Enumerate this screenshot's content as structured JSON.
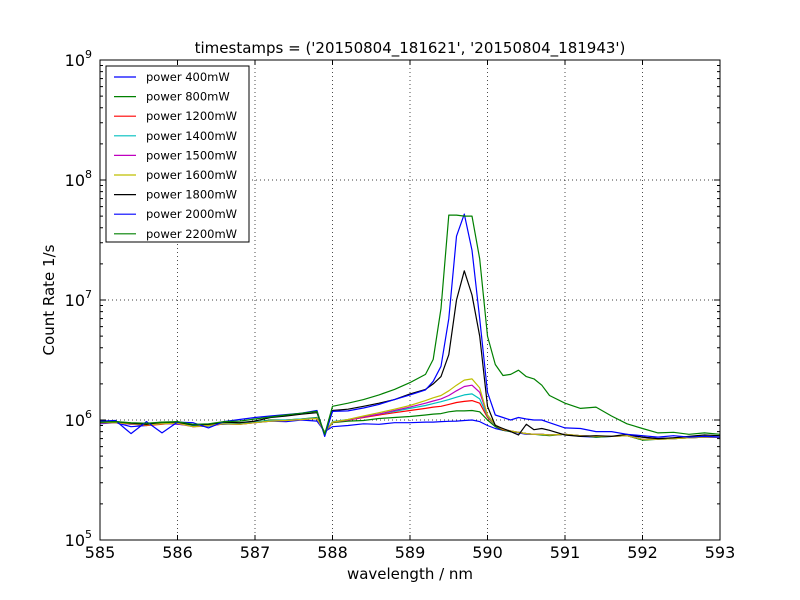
{
  "chart_data": {
    "type": "line",
    "title": "timestamps = ('20150804_181621', '20150804_181943')",
    "xlabel": "wavelength / nm",
    "ylabel": "Count Rate 1/s",
    "xlim": [
      585,
      593
    ],
    "ylim": [
      100000,
      1000000000
    ],
    "yscale": "log",
    "grid": true,
    "legend_position": "top-left",
    "x_ticks": [
      "585",
      "586",
      "587",
      "588",
      "589",
      "590",
      "591",
      "592",
      "593"
    ],
    "y_ticks": [
      {
        "base": "10",
        "exp": "5"
      },
      {
        "base": "10",
        "exp": "6"
      },
      {
        "base": "10",
        "exp": "7"
      },
      {
        "base": "10",
        "exp": "8"
      },
      {
        "base": "10",
        "exp": "9"
      }
    ],
    "x": [
      585.0,
      585.2,
      585.4,
      585.6,
      585.8,
      586.0,
      586.2,
      586.4,
      586.6,
      586.8,
      587.0,
      587.2,
      587.4,
      587.6,
      587.8,
      587.9,
      588.0,
      588.2,
      588.4,
      588.6,
      588.8,
      589.0,
      589.2,
      589.3,
      589.4,
      589.5,
      589.6,
      589.7,
      589.8,
      589.9,
      590.0,
      590.1,
      590.2,
      590.3,
      590.4,
      590.5,
      590.6,
      590.7,
      590.8,
      591.0,
      591.2,
      591.4,
      591.6,
      591.8,
      592.0,
      592.2,
      592.4,
      592.6,
      592.8,
      593.0
    ],
    "series": [
      {
        "name": "power 400mW",
        "color": "#0000ff",
        "values": [
          930000,
          950000,
          880000,
          900000,
          940000,
          920000,
          900000,
          910000,
          920000,
          930000,
          950000,
          980000,
          970000,
          1000000,
          980000,
          800000,
          880000,
          900000,
          930000,
          920000,
          950000,
          950000,
          960000,
          960000,
          970000,
          975000,
          980000,
          990000,
          1000000,
          970000,
          900000,
          850000,
          820000,
          800000,
          780000,
          760000,
          760000,
          760000,
          750000,
          760000,
          730000,
          720000,
          730000,
          740000,
          720000,
          700000,
          710000,
          720000,
          730000,
          720000
        ]
      },
      {
        "name": "power 800mW",
        "color": "#008000",
        "values": [
          970000,
          960000,
          940000,
          920000,
          950000,
          960000,
          900000,
          900000,
          960000,
          940000,
          960000,
          1000000,
          1000000,
          1020000,
          1050000,
          780000,
          950000,
          980000,
          990000,
          1030000,
          1050000,
          1070000,
          1100000,
          1120000,
          1130000,
          1170000,
          1190000,
          1190000,
          1200000,
          1170000,
          1000000,
          880000,
          820000,
          800000,
          790000,
          770000,
          760000,
          750000,
          740000,
          760000,
          740000,
          720000,
          730000,
          740000,
          680000,
          690000,
          700000,
          710000,
          720000,
          720000
        ]
      },
      {
        "name": "power 1200mW",
        "color": "#ff0000",
        "values": [
          950000,
          960000,
          930000,
          900000,
          920000,
          950000,
          880000,
          890000,
          930000,
          920000,
          950000,
          990000,
          990000,
          1010000,
          1040000,
          790000,
          960000,
          1000000,
          1050000,
          1100000,
          1150000,
          1200000,
          1250000,
          1280000,
          1300000,
          1350000,
          1400000,
          1430000,
          1450000,
          1380000,
          1050000,
          900000,
          830000,
          810000,
          790000,
          770000,
          760000,
          760000,
          750000,
          760000,
          740000,
          730000,
          730000,
          740000,
          690000,
          690000,
          700000,
          710000,
          720000,
          720000
        ]
      },
      {
        "name": "power 1400mW",
        "color": "#00bfbf",
        "values": [
          960000,
          960000,
          920000,
          910000,
          930000,
          940000,
          890000,
          890000,
          940000,
          930000,
          960000,
          990000,
          1000000,
          1020000,
          1040000,
          790000,
          970000,
          1010000,
          1060000,
          1120000,
          1180000,
          1250000,
          1320000,
          1370000,
          1420000,
          1480000,
          1550000,
          1620000,
          1650000,
          1500000,
          1080000,
          900000,
          840000,
          810000,
          790000,
          770000,
          760000,
          760000,
          750000,
          760000,
          740000,
          730000,
          730000,
          740000,
          690000,
          690000,
          700000,
          710000,
          720000,
          720000
        ]
      },
      {
        "name": "power 1500mW",
        "color": "#bf00bf",
        "values": [
          940000,
          950000,
          920000,
          910000,
          930000,
          930000,
          880000,
          900000,
          930000,
          920000,
          950000,
          980000,
          990000,
          1010000,
          1030000,
          780000,
          960000,
          1000000,
          1060000,
          1120000,
          1200000,
          1280000,
          1380000,
          1440000,
          1500000,
          1600000,
          1750000,
          1900000,
          1950000,
          1700000,
          1100000,
          910000,
          840000,
          810000,
          790000,
          770000,
          760000,
          760000,
          750000,
          760000,
          740000,
          730000,
          730000,
          740000,
          690000,
          690000,
          700000,
          710000,
          720000,
          720000
        ]
      },
      {
        "name": "power 1600mW",
        "color": "#bfbf00",
        "values": [
          950000,
          950000,
          930000,
          910000,
          930000,
          940000,
          880000,
          900000,
          930000,
          920000,
          950000,
          980000,
          990000,
          1010000,
          1030000,
          790000,
          960000,
          1010000,
          1080000,
          1150000,
          1230000,
          1320000,
          1450000,
          1530000,
          1600000,
          1750000,
          1950000,
          2150000,
          2200000,
          1850000,
          1100000,
          910000,
          840000,
          810000,
          790000,
          770000,
          760000,
          760000,
          750000,
          760000,
          740000,
          730000,
          730000,
          740000,
          690000,
          690000,
          700000,
          710000,
          720000,
          720000
        ]
      },
      {
        "name": "power 1800mW",
        "color": "#000000",
        "values": [
          960000,
          970000,
          940000,
          920000,
          960000,
          960000,
          910000,
          920000,
          960000,
          950000,
          980000,
          1050000,
          1080000,
          1120000,
          1150000,
          750000,
          1200000,
          1230000,
          1300000,
          1380000,
          1480000,
          1650000,
          1800000,
          2000000,
          2300000,
          3500000,
          10000000,
          17500000,
          11000000,
          5000000,
          1300000,
          900000,
          850000,
          800000,
          750000,
          920000,
          830000,
          850000,
          820000,
          750000,
          730000,
          740000,
          730000,
          760000,
          720000,
          700000,
          710000,
          730000,
          750000,
          740000
        ]
      },
      {
        "name": "power 2000mW",
        "color": "#0000ff",
        "values": [
          980000,
          990000,
          770000,
          970000,
          780000,
          960000,
          950000,
          860000,
          970000,
          1010000,
          1050000,
          1080000,
          1110000,
          1140000,
          1200000,
          730000,
          1180000,
          1190000,
          1260000,
          1350000,
          1480000,
          1620000,
          1780000,
          2100000,
          2800000,
          7000000,
          34000000,
          52000000,
          26000000,
          7000000,
          1700000,
          1100000,
          1050000,
          1000000,
          1050000,
          1020000,
          1000000,
          1000000,
          950000,
          860000,
          850000,
          800000,
          800000,
          760000,
          740000,
          720000,
          740000,
          720000,
          730000,
          720000
        ]
      },
      {
        "name": "power 2200mW",
        "color": "#008000",
        "values": [
          960000,
          970000,
          950000,
          940000,
          960000,
          970000,
          920000,
          930000,
          970000,
          980000,
          1020000,
          1060000,
          1100000,
          1140000,
          1180000,
          760000,
          1300000,
          1380000,
          1480000,
          1620000,
          1800000,
          2050000,
          2400000,
          3200000,
          8500000,
          51000000,
          51000000,
          50000000,
          50000000,
          22000000,
          5000000,
          2900000,
          2350000,
          2400000,
          2600000,
          2300000,
          2200000,
          1950000,
          1600000,
          1380000,
          1250000,
          1280000,
          1080000,
          930000,
          850000,
          780000,
          790000,
          760000,
          780000,
          760000
        ]
      }
    ]
  }
}
